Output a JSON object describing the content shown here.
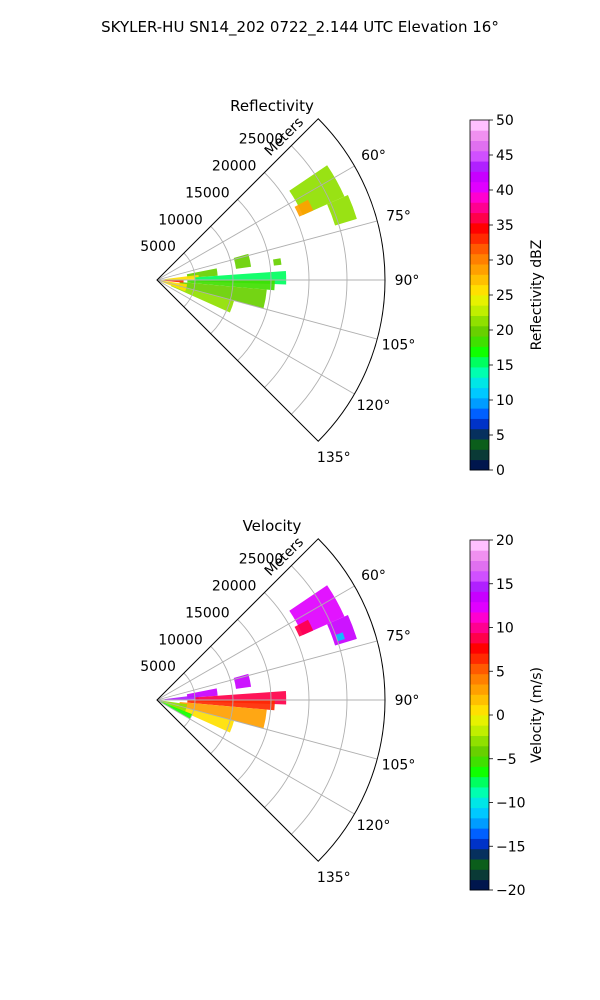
{
  "figure": {
    "suptitle": "SKYLER-HU  SN14_202  0722_2.144 UTC Elevation 16°"
  },
  "chart_data": [
    {
      "type": "heatmap",
      "projection": "polar-sector",
      "title": "Reflectivity",
      "range_label": "Meters",
      "range_ticks": [
        5000,
        10000,
        15000,
        20000,
        25000
      ],
      "range_max": 30000,
      "azimuth_ticks": [
        "60°",
        "75°",
        "90°",
        "105°",
        "120°",
        "135°"
      ],
      "azimuth_tick_values": [
        60,
        75,
        90,
        105,
        120,
        135
      ],
      "azimuth_range": [
        45,
        135
      ],
      "grid": true,
      "colorbar": {
        "label": "Reflectivity dBZ",
        "min": 0,
        "max": 50,
        "ticks": [
          0,
          5,
          10,
          15,
          20,
          25,
          30,
          35,
          40,
          45,
          50
        ],
        "colors": [
          "#00164d",
          "#0a3a36",
          "#0b5e1b",
          "#06305e",
          "#0033c8",
          "#0060ff",
          "#009cff",
          "#00c8ff",
          "#00e6e6",
          "#00ffb0",
          "#00ff60",
          "#10ff00",
          "#40e000",
          "#68d000",
          "#90e000",
          "#c0ee00",
          "#e6f200",
          "#ffe000",
          "#ffc000",
          "#ffa000",
          "#ff8000",
          "#ff5a00",
          "#ff2a00",
          "#ff0000",
          "#ff004a",
          "#ff0090",
          "#ff00d0",
          "#e000ff",
          "#c800ff",
          "#b020ff",
          "#d050ff",
          "#e070f0",
          "#f090f0",
          "#ffc0ff"
        ]
      },
      "echo_regions": [
        {
          "az": [
            56,
            66
          ],
          "r": [
            21000,
            27000
          ],
          "value": 22
        },
        {
          "az": [
            62,
            66
          ],
          "r": [
            20500,
            22500
          ],
          "value": 28
        },
        {
          "az": [
            66,
            73
          ],
          "r": [
            24500,
            27500
          ],
          "value": 22
        },
        {
          "az": [
            74,
            82
          ],
          "r": [
            10500,
            12500
          ],
          "value": 20
        },
        {
          "az": [
            80,
            83
          ],
          "r": [
            15500,
            16500
          ],
          "value": 20
        },
        {
          "az": [
            79,
            86
          ],
          "r": [
            4000,
            8000
          ],
          "value": 20
        },
        {
          "az": [
            83,
            89
          ],
          "r": [
            1000,
            5500
          ],
          "value": 26
        },
        {
          "az": [
            86,
            92
          ],
          "r": [
            5000,
            17000
          ],
          "value": 15
        },
        {
          "az": [
            90,
            95
          ],
          "r": [
            4000,
            15500
          ],
          "value": 18
        },
        {
          "az": [
            95,
            105
          ],
          "r": [
            3000,
            14500
          ],
          "value": 20
        },
        {
          "az": [
            105,
            114
          ],
          "r": [
            2000,
            10500
          ],
          "value": 21
        },
        {
          "az": [
            98,
            112
          ],
          "r": [
            500,
            4000
          ],
          "value": 26
        },
        {
          "az": [
            91,
            96
          ],
          "r": [
            500,
            3500
          ],
          "value": 33
        }
      ]
    },
    {
      "type": "heatmap",
      "projection": "polar-sector",
      "title": "Velocity",
      "range_label": "Meters",
      "range_ticks": [
        5000,
        10000,
        15000,
        20000,
        25000
      ],
      "range_max": 30000,
      "azimuth_ticks": [
        "60°",
        "75°",
        "90°",
        "105°",
        "120°",
        "135°"
      ],
      "azimuth_tick_values": [
        60,
        75,
        90,
        105,
        120,
        135
      ],
      "azimuth_range": [
        45,
        135
      ],
      "grid": true,
      "colorbar": {
        "label": "Velocity (m/s)",
        "min": -20,
        "max": 20,
        "ticks": [
          -20,
          -15,
          -10,
          -5,
          0,
          5,
          10,
          15,
          20
        ],
        "colors": [
          "#00164d",
          "#0a3a36",
          "#0b5e1b",
          "#06305e",
          "#0033c8",
          "#0060ff",
          "#009cff",
          "#00c8ff",
          "#00e6e6",
          "#00ffb0",
          "#00ff60",
          "#10ff00",
          "#40e000",
          "#68d000",
          "#90e000",
          "#c0ee00",
          "#e6f200",
          "#ffe000",
          "#ffc000",
          "#ffa000",
          "#ff8000",
          "#ff5a00",
          "#ff2a00",
          "#ff0000",
          "#ff004a",
          "#ff0090",
          "#ff00d0",
          "#e000ff",
          "#c800ff",
          "#b020ff",
          "#d050ff",
          "#e070f0",
          "#f090f0",
          "#ffc0ff"
        ]
      },
      "echo_regions": [
        {
          "az": [
            56,
            66
          ],
          "r": [
            21000,
            27000
          ],
          "value": 12
        },
        {
          "az": [
            62,
            66
          ],
          "r": [
            20500,
            22500
          ],
          "value": 9
        },
        {
          "az": [
            66,
            73
          ],
          "r": [
            24500,
            27500
          ],
          "value": 14
        },
        {
          "az": [
            70,
            72
          ],
          "r": [
            25000,
            26000
          ],
          "value": -11
        },
        {
          "az": [
            74,
            82
          ],
          "r": [
            10500,
            12500
          ],
          "value": 14
        },
        {
          "az": [
            79,
            86
          ],
          "r": [
            4000,
            8000
          ],
          "value": 14
        },
        {
          "az": [
            83,
            89
          ],
          "r": [
            1000,
            5500
          ],
          "value": 15
        },
        {
          "az": [
            86,
            92
          ],
          "r": [
            5000,
            17000
          ],
          "value": 9
        },
        {
          "az": [
            90,
            95
          ],
          "r": [
            4000,
            15500
          ],
          "value": 7
        },
        {
          "az": [
            95,
            105
          ],
          "r": [
            3000,
            14500
          ],
          "value": 3
        },
        {
          "az": [
            105,
            114
          ],
          "r": [
            2000,
            10500
          ],
          "value": 1
        },
        {
          "az": [
            98,
            112
          ],
          "r": [
            500,
            4000
          ],
          "value": -3
        },
        {
          "az": [
            112,
            120
          ],
          "r": [
            500,
            5000
          ],
          "value": -6
        }
      ]
    }
  ]
}
